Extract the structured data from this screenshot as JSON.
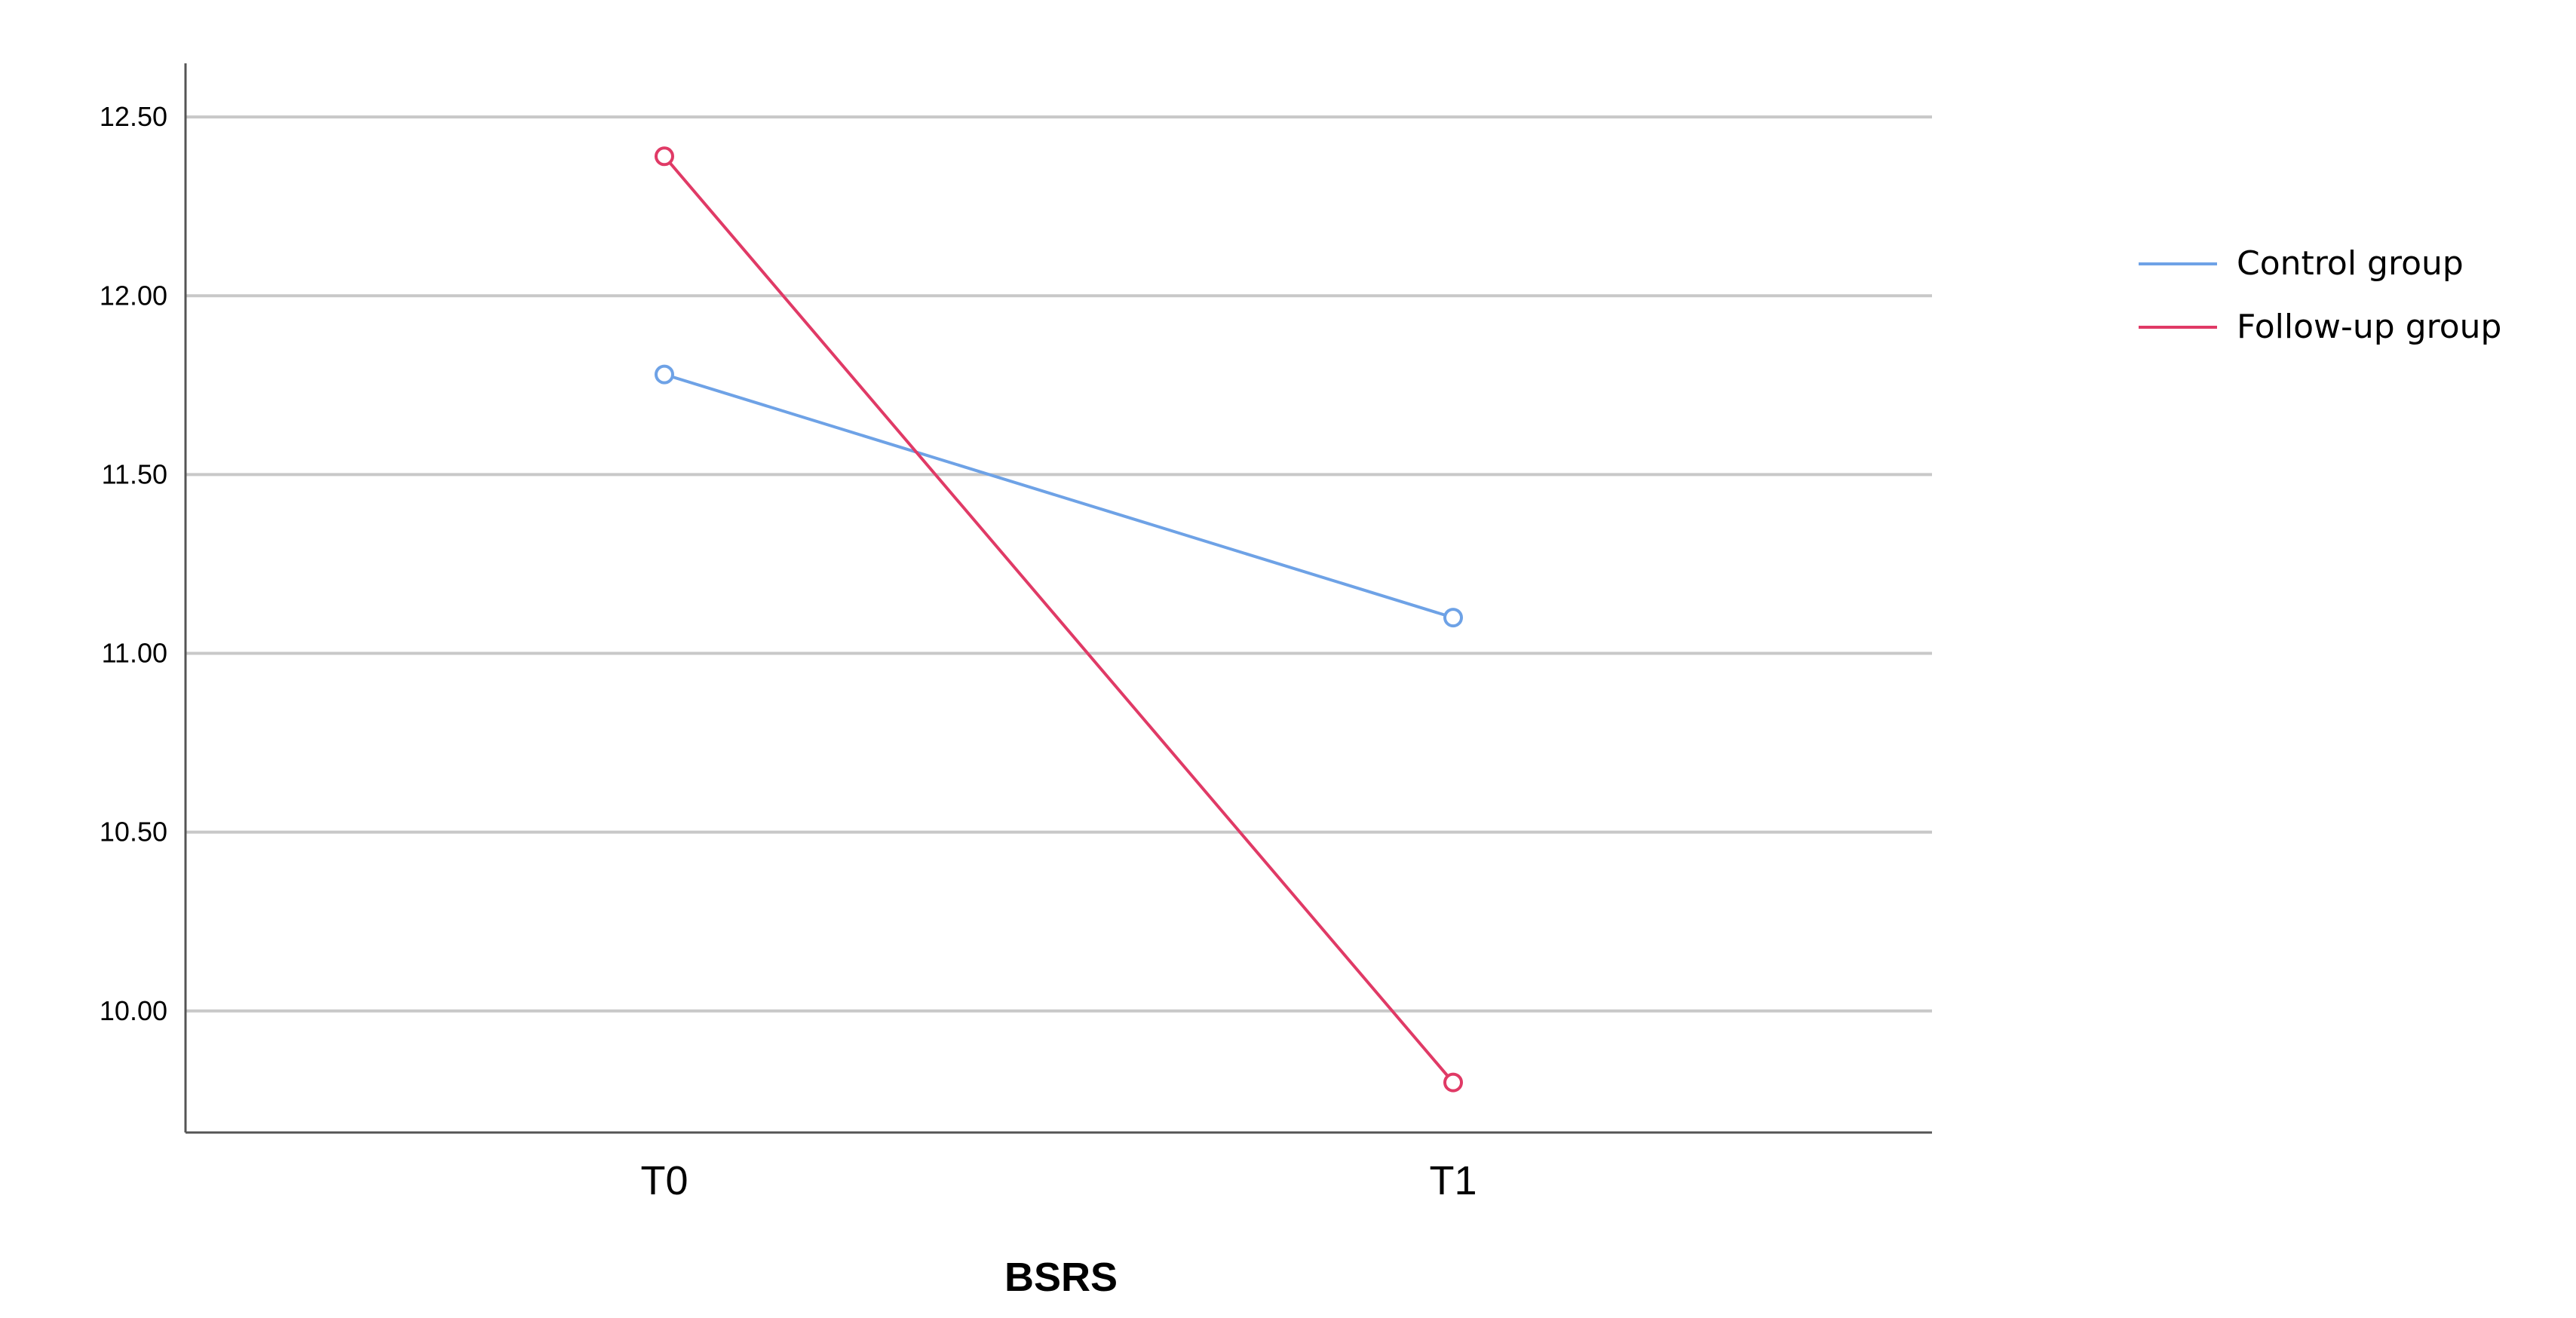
{
  "chart_data": {
    "type": "line",
    "categories": [
      "T0",
      "T1"
    ],
    "series": [
      {
        "name": "Control group",
        "values": [
          11.78,
          11.1
        ],
        "color": "#6ea2e6"
      },
      {
        "name": "Follow-up group",
        "values": [
          12.39,
          9.8
        ],
        "color": "#e03a66"
      }
    ],
    "title": "",
    "xlabel": "BSRS",
    "ylabel": "",
    "ylim": [
      9.66,
      12.65
    ],
    "yticks": [
      10.0,
      10.5,
      11.0,
      11.5,
      12.0,
      12.5
    ],
    "ytick_labels": [
      "10.00",
      "10.50",
      "11.00",
      "11.50",
      "12.00",
      "12.50"
    ],
    "grid": true,
    "legend": "right",
    "marker": "open-circle"
  }
}
